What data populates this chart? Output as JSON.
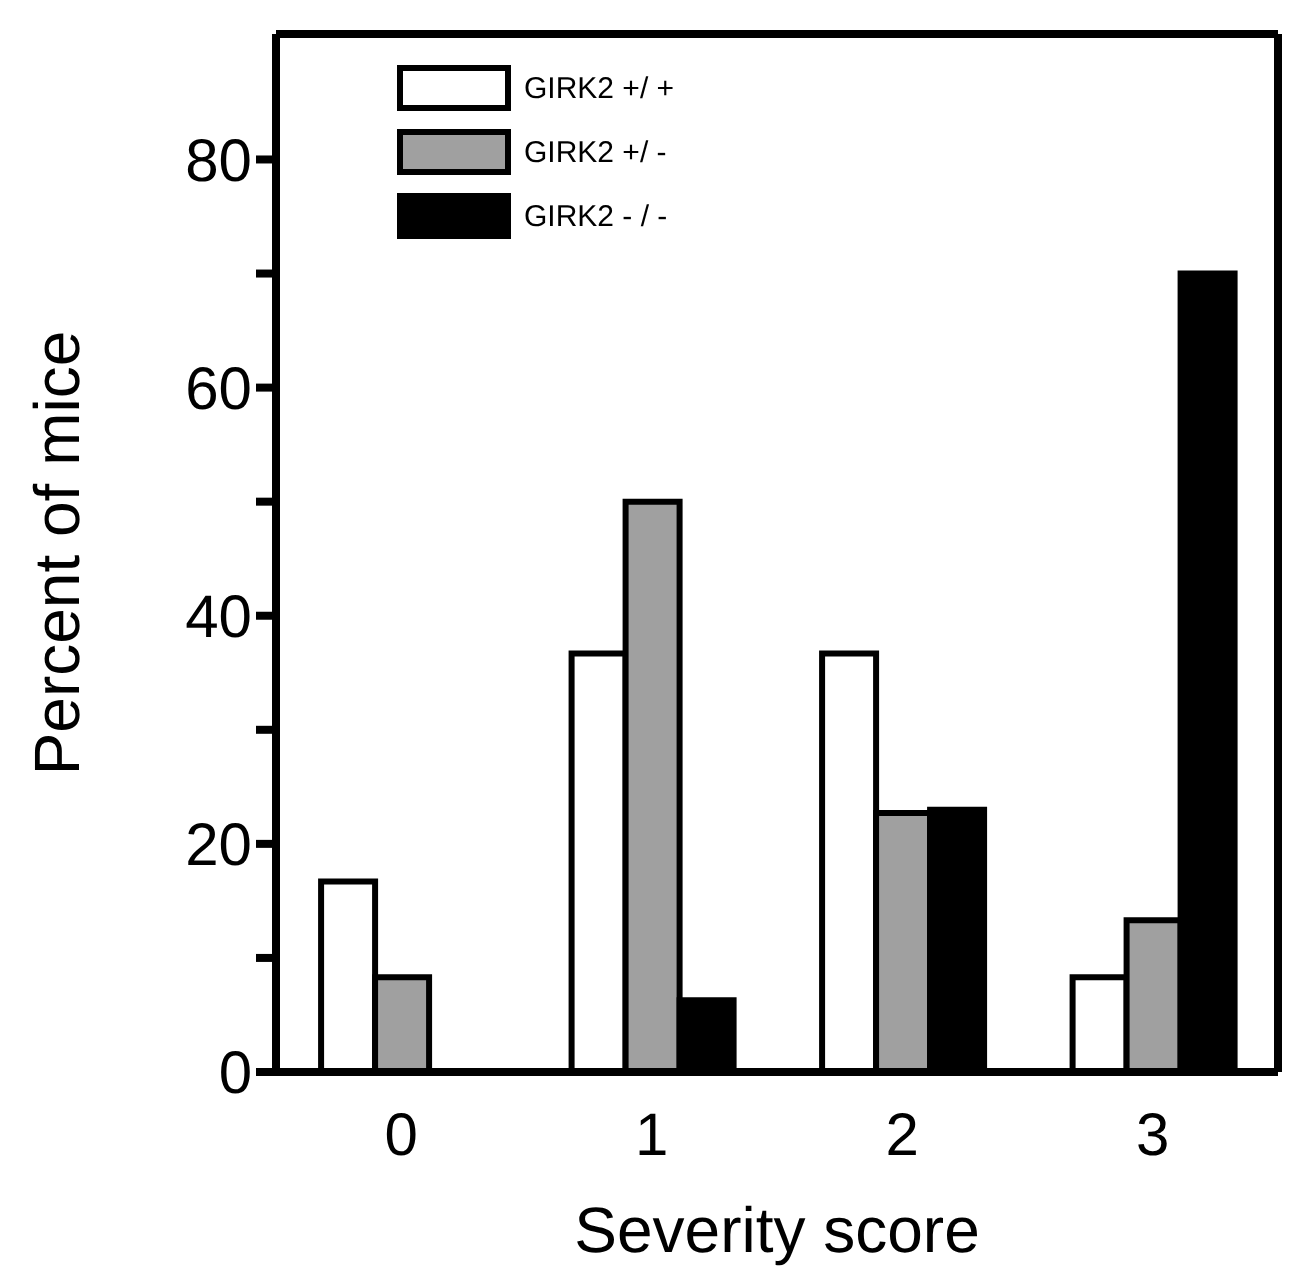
{
  "chart_data": {
    "type": "bar",
    "xlabel": "Severity score",
    "ylabel": "Percent of mice",
    "categories": [
      "0",
      "1",
      "2",
      "3"
    ],
    "series": [
      {
        "name": "GIRK2 +/ +",
        "color": "#ffffff",
        "values": [
          16.7,
          36.7,
          36.7,
          8.3
        ]
      },
      {
        "name": "GIRK2 +/ -",
        "color": "#a0a0a0",
        "values": [
          8.3,
          50,
          22.7,
          13.3
        ]
      },
      {
        "name": "GIRK2 - / -",
        "color": "#000000",
        "values": [
          null,
          6.3,
          23,
          70
        ]
      }
    ],
    "ylim": [
      0,
      91
    ],
    "yticks": [
      0,
      {
        "value": 10,
        "label": null
      },
      20,
      {
        "value": 30,
        "label": null
      },
      40,
      {
        "value": 50,
        "label": null
      },
      60,
      {
        "value": 70,
        "label": null
      },
      80
    ],
    "legend": "top left"
  }
}
